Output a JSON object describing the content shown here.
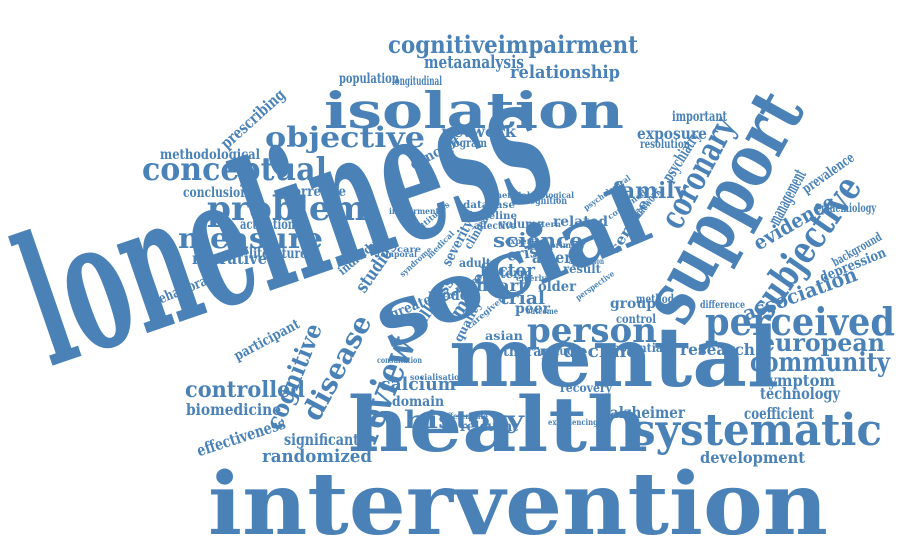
{
  "colors": {
    "text": "#4a82b8",
    "background": "#ffffff"
  },
  "words": [
    "loneliness",
    "intervention",
    "health",
    "mental",
    "social",
    "support",
    "isolation",
    "systematic",
    "review",
    "cognitiveimpairment",
    "problem",
    "conceptual",
    "perceived",
    "subjective",
    "person",
    "objective",
    "measure",
    "coronary",
    "disease",
    "cognitive",
    "community",
    "european",
    "history",
    "association",
    "family",
    "controlled",
    "relationship",
    "metaanalysis",
    "science",
    "evidence",
    "management",
    "randomized",
    "calcium",
    "decline",
    "research",
    "symptom",
    "technology",
    "biomedicine",
    "effectiveness",
    "significant",
    "development",
    "coefficient",
    "alzheimer",
    "network",
    "exposure",
    "important",
    "psychiatry",
    "prevalence",
    "epidemiology",
    "background",
    "depression",
    "narrative",
    "behavioral",
    "methodological",
    "conclusion",
    "correlate",
    "activation",
    "literature",
    "prescribing",
    "population",
    "longitudinal",
    "concept",
    "program",
    "resolution",
    "heart",
    "artery",
    "factor",
    "crisis",
    "model",
    "trial",
    "group",
    "therapy",
    "reduce",
    "potential",
    "control",
    "method",
    "framework",
    "service",
    "related",
    "studies",
    "individual",
    "participant",
    "domain",
    "relevant",
    "recovery",
    "greater",
    "peer",
    "older",
    "adult",
    "illness",
    "more",
    "asian",
    "term",
    "result",
    "difference",
    "volume",
    "database",
    "baseline",
    "cognition",
    "affective",
    "clinical",
    "severity",
    "pattern",
    "primary",
    "expert",
    "quality",
    "consultation",
    "differentiate",
    "experiencing",
    "combined",
    "socialisation",
    "psychological",
    "medical",
    "impairment",
    "beneficial",
    "biological",
    "syndrome",
    "temporal",
    "challenge",
    "caregiver",
    "attitudes",
    "outcome",
    "elderly",
    "association",
    "perspective",
    "care"
  ]
}
